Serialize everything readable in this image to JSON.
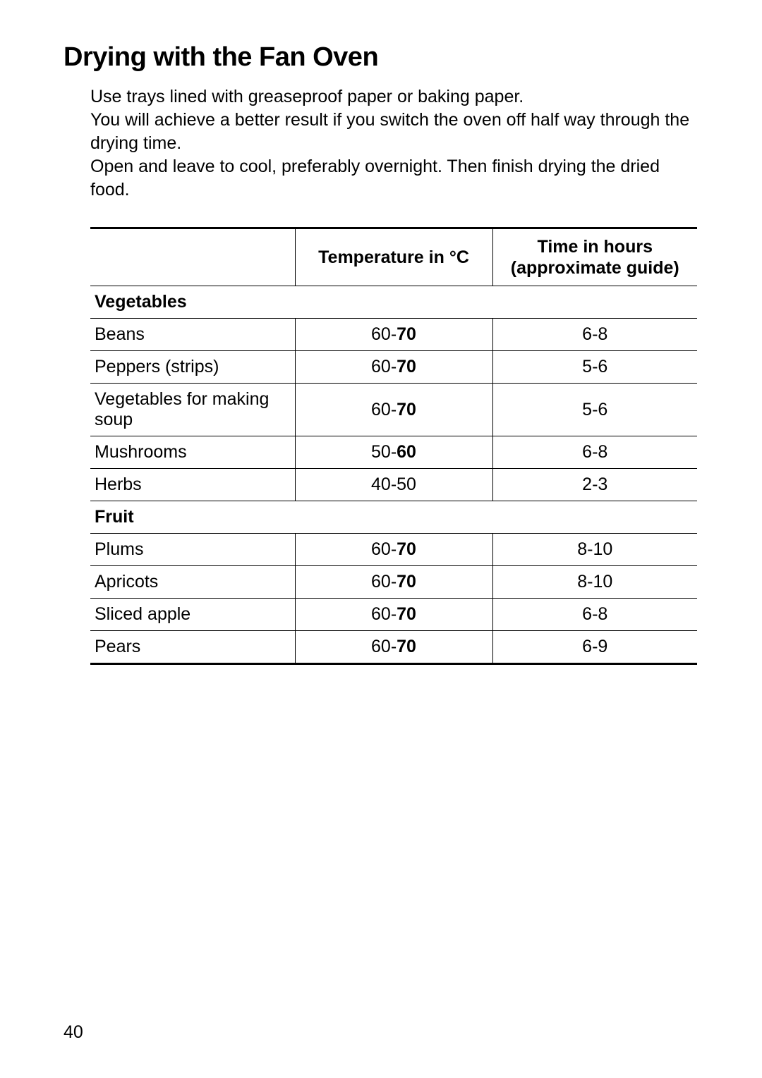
{
  "page": {
    "title": "Drying with the Fan Oven",
    "intro_lines": [
      "Use trays lined with greaseproof paper or baking paper.",
      "You will achieve a better result if you switch the oven off half way through the drying time.",
      "Open and leave to cool, preferably overnight. Then finish drying the dried food."
    ],
    "page_number": "40"
  },
  "table": {
    "columns": {
      "food": "",
      "temp": "Temperature in °C",
      "time_line1": "Time in hours",
      "time_line2": "(approximate guide)"
    },
    "sections": [
      {
        "label": "Vegetables",
        "rows": [
          {
            "food": "Beans",
            "temp_low": "60-",
            "temp_high": "70",
            "time": "6-8"
          },
          {
            "food": "Peppers (strips)",
            "temp_low": "60-",
            "temp_high": "70",
            "time": "5-6"
          },
          {
            "food": "Vegetables for making soup",
            "temp_low": "60-",
            "temp_high": "70",
            "time": "5-6"
          },
          {
            "food": "Mushrooms",
            "temp_low": "50-",
            "temp_high": "60",
            "time": "6-8"
          },
          {
            "food": "Herbs",
            "temp_low": "40-50",
            "temp_high": "",
            "time": "2-3"
          }
        ]
      },
      {
        "label": "Fruit",
        "rows": [
          {
            "food": "Plums",
            "temp_low": "60-",
            "temp_high": "70",
            "time": "8-10"
          },
          {
            "food": "Apricots",
            "temp_low": "60-",
            "temp_high": "70",
            "time": "8-10"
          },
          {
            "food": "Sliced apple",
            "temp_low": "60-",
            "temp_high": "70",
            "time": "6-8"
          },
          {
            "food": "Pears",
            "temp_low": "60-",
            "temp_high": "70",
            "time": "6-9"
          }
        ]
      }
    ]
  }
}
